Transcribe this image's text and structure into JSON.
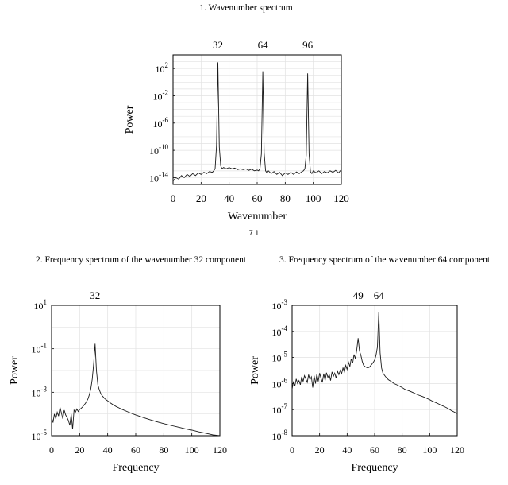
{
  "caption": "7.1",
  "chart_data": [
    {
      "type": "line",
      "title": "1. Wavenumber spectrum",
      "xlabel": "Wavenumber",
      "ylabel": "Power",
      "yscale": "log",
      "xlim": [
        0,
        120
      ],
      "ylim": [
        1e-15,
        10000.0
      ],
      "xticks": [
        0,
        20,
        40,
        60,
        80,
        100,
        120
      ],
      "yticks": [
        {
          "base": "10",
          "exp": "2",
          "value": 100
        },
        {
          "base": "10",
          "exp": "-2",
          "value": 0.01
        },
        {
          "base": "10",
          "exp": "-6",
          "value": 1e-06
        },
        {
          "base": "10",
          "exp": "-10",
          "value": 1e-10
        },
        {
          "base": "10",
          "exp": "-14",
          "value": 1e-14
        }
      ],
      "peak_labels": [
        "32",
        "64",
        "96"
      ],
      "peak_positions": [
        32,
        64,
        96
      ],
      "grid": true,
      "series": [
        {
          "x": [
            0,
            2,
            4,
            6,
            8,
            10,
            12,
            14,
            16,
            18,
            20,
            22,
            24,
            26,
            28,
            29,
            30,
            31,
            32,
            33,
            34,
            35,
            36,
            38,
            40,
            42,
            44,
            46,
            48,
            50,
            52,
            54,
            56,
            58,
            60,
            61,
            62,
            63,
            64,
            65,
            66,
            67,
            68,
            70,
            72,
            74,
            76,
            78,
            80,
            82,
            84,
            86,
            88,
            90,
            92,
            93,
            94,
            95,
            96,
            97,
            98,
            99,
            100,
            102,
            104,
            106,
            108,
            110,
            112,
            114,
            116,
            118,
            120
          ],
          "y": [
            3e-15,
            1e-14,
            6e-15,
            2e-14,
            1e-14,
            3e-14,
            1.5e-14,
            4e-14,
            2e-14,
            5e-14,
            3e-14,
            6e-14,
            4e-14,
            8e-14,
            6e-14,
            1e-13,
            2e-13,
            5e-10,
            800,
            3e-10,
            5e-13,
            2e-13,
            3e-13,
            2e-13,
            3e-13,
            2e-13,
            2.5e-13,
            1.5e-13,
            2e-13,
            1.5e-13,
            2e-13,
            1.2e-13,
            1.8e-13,
            1e-13,
            1.3e-13,
            1e-13,
            2e-13,
            3e-11,
            40,
            4e-11,
            1e-13,
            5e-14,
            1e-13,
            4e-14,
            8e-14,
            3e-14,
            6e-14,
            2e-14,
            5e-14,
            3e-14,
            6e-14,
            3e-14,
            7e-14,
            4e-14,
            8e-14,
            1e-13,
            2e-13,
            2e-11,
            20,
            3e-11,
            8e-14,
            4e-14,
            1e-13,
            5e-14,
            1e-13,
            4e-14,
            8e-14,
            5e-14,
            1e-13,
            6e-14,
            1.2e-13,
            5e-14,
            1.5e-13
          ]
        }
      ]
    },
    {
      "type": "line",
      "title": "2. Frequency spectrum of the wavenumber 32 component",
      "xlabel": "Frequency",
      "ylabel": "Power",
      "yscale": "log",
      "xlim": [
        0,
        120
      ],
      "ylim": [
        1e-05,
        10
      ],
      "xticks": [
        0,
        20,
        40,
        60,
        80,
        100,
        120
      ],
      "yticks": [
        {
          "base": "10",
          "exp": "1",
          "value": 10
        },
        {
          "base": "10",
          "exp": "-1",
          "value": 0.1
        },
        {
          "base": "10",
          "exp": "-3",
          "value": 0.001
        },
        {
          "base": "10",
          "exp": "-5",
          "value": 1e-05
        }
      ],
      "peak_labels": [
        "32"
      ],
      "peak_positions": [
        31
      ],
      "grid": true,
      "series": [
        {
          "x": [
            0,
            1,
            2,
            3,
            4,
            5,
            6,
            7,
            8,
            9,
            10,
            11,
            12,
            13,
            14,
            15,
            16,
            17,
            18,
            19,
            20,
            21,
            22,
            23,
            24,
            25,
            26,
            27,
            28,
            29,
            30,
            31,
            32,
            33,
            34,
            35,
            36,
            38,
            40,
            42,
            44,
            46,
            48,
            50,
            55,
            60,
            65,
            70,
            75,
            80,
            85,
            90,
            95,
            100,
            105,
            110,
            115,
            120
          ],
          "y": [
            7e-05,
            4e-05,
            0.0001,
            6e-05,
            0.00012,
            8e-05,
            0.0002,
            0.00011,
            6e-05,
            0.00015,
            9e-05,
            7e-05,
            5e-05,
            3e-05,
            0.0001,
            2e-05,
            0.00015,
            0.00012,
            0.00017,
            0.00013,
            0.00016,
            0.00018,
            0.00021,
            0.00025,
            0.0003,
            0.00038,
            0.0005,
            0.0008,
            0.0015,
            0.004,
            0.02,
            0.17,
            0.01,
            0.0022,
            0.0013,
            0.0009,
            0.0007,
            0.0005,
            0.0004,
            0.00032,
            0.00026,
            0.00022,
            0.00019,
            0.000165,
            0.00012,
            9e-05,
            7e-05,
            5.5e-05,
            4.4e-05,
            3.6e-05,
            3e-05,
            2.5e-05,
            2.1e-05,
            1.8e-05,
            1.5e-05,
            1.3e-05,
            1.1e-05,
            1e-05
          ]
        }
      ]
    },
    {
      "type": "line",
      "title": "3. Frequency spectrum of the wavenumber 64 component",
      "xlabel": "Frequency",
      "ylabel": "Power",
      "yscale": "log",
      "xlim": [
        0,
        120
      ],
      "ylim": [
        1e-08,
        0.001
      ],
      "xticks": [
        0,
        20,
        40,
        60,
        80,
        100,
        120
      ],
      "yticks": [
        {
          "base": "10",
          "exp": "-3",
          "value": 0.001
        },
        {
          "base": "10",
          "exp": "-4",
          "value": 0.0001
        },
        {
          "base": "10",
          "exp": "-5",
          "value": 1e-05
        },
        {
          "base": "10",
          "exp": "-6",
          "value": 1e-06
        },
        {
          "base": "10",
          "exp": "-7",
          "value": 1e-07
        },
        {
          "base": "10",
          "exp": "-8",
          "value": 1e-08
        }
      ],
      "peak_labels": [
        "49",
        "64"
      ],
      "peak_positions": [
        48,
        63
      ],
      "grid": true,
      "series": [
        {
          "x": [
            0,
            1,
            2,
            3,
            4,
            5,
            6,
            7,
            8,
            9,
            10,
            11,
            12,
            13,
            14,
            15,
            16,
            17,
            18,
            19,
            20,
            21,
            22,
            23,
            24,
            25,
            26,
            27,
            28,
            29,
            30,
            31,
            32,
            33,
            34,
            35,
            36,
            37,
            38,
            39,
            40,
            41,
            42,
            43,
            44,
            45,
            46,
            47,
            48,
            49,
            50,
            51,
            52,
            53,
            54,
            55,
            56,
            57,
            58,
            59,
            60,
            61,
            62,
            63,
            64,
            65,
            66,
            68,
            70,
            72,
            74,
            76,
            78,
            80,
            82,
            84,
            86,
            88,
            90,
            92,
            94,
            96,
            98,
            100,
            102,
            104,
            106,
            108,
            110,
            112,
            114,
            116,
            118,
            120
          ],
          "y": [
            6e-07,
            1.2e-06,
            8e-07,
            1.5e-06,
            1e-06,
            1.3e-06,
            9e-07,
            1.8e-06,
            1.2e-06,
            2e-06,
            1.5e-06,
            1.1e-06,
            2.2e-06,
            1.4e-06,
            1.8e-06,
            7e-07,
            2e-06,
            1e-06,
            2.3e-06,
            1.2e-06,
            2.5e-06,
            1.6e-06,
            1.1e-06,
            2.4e-06,
            1.3e-06,
            2.6e-06,
            1.7e-06,
            2.2e-06,
            1.3e-06,
            2.8e-06,
            1.9e-06,
            2.5e-06,
            1.6e-06,
            3e-06,
            2.2e-06,
            3.2e-06,
            2.4e-06,
            4e-06,
            2.8e-06,
            5e-06,
            3.5e-06,
            6.5e-06,
            4.5e-06,
            9e-06,
            6e-06,
            1.3e-05,
            9e-06,
            2e-05,
            5.5e-05,
            1.8e-05,
            1.2e-05,
            7e-06,
            5e-06,
            4.5e-06,
            4.2e-06,
            4e-06,
            4.2e-06,
            4.8e-06,
            5.5e-06,
            6.5e-06,
            8e-06,
            1.2e-05,
            2.5e-05,
            0.00055,
            1.5e-05,
            4e-06,
            2.5e-06,
            1.8e-06,
            1.4e-06,
            1.2e-06,
            1e-06,
            9e-07,
            8e-07,
            7e-07,
            6e-07,
            5.5e-07,
            5e-07,
            4.5e-07,
            4e-07,
            3.6e-07,
            3.3e-07,
            3e-07,
            2.7e-07,
            2.4e-07,
            2.1e-07,
            1.9e-07,
            1.7e-07,
            1.5e-07,
            1.35e-07,
            1.2e-07,
            1.05e-07,
            9e-08,
            8e-08,
            7e-08
          ]
        }
      ]
    }
  ]
}
